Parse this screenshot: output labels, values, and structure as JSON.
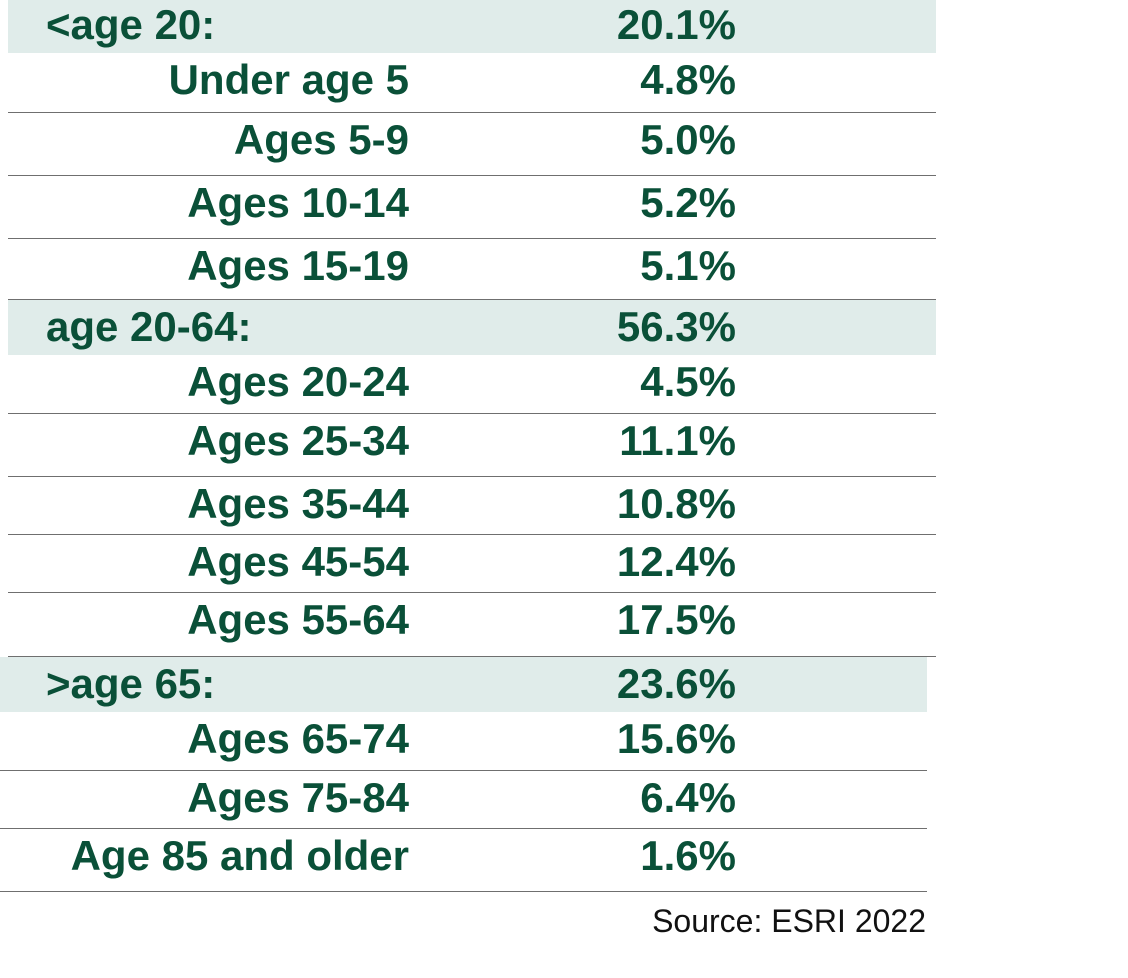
{
  "chart_data": {
    "type": "table",
    "rows": [
      {
        "kind": "group",
        "label": "<age 20:",
        "value": "20.1%"
      },
      {
        "kind": "item",
        "label": "Under age 5",
        "value": "4.8%"
      },
      {
        "kind": "item",
        "label": "Ages 5-9",
        "value": "5.0%"
      },
      {
        "kind": "item",
        "label": "Ages 10-14",
        "value": "5.2%"
      },
      {
        "kind": "item",
        "label": "Ages 15-19",
        "value": "5.1%"
      },
      {
        "kind": "group",
        "label": "age 20-64:",
        "value": "56.3%"
      },
      {
        "kind": "item",
        "label": "Ages 20-24",
        "value": "4.5%"
      },
      {
        "kind": "item",
        "label": "Ages 25-34",
        "value": "11.1%"
      },
      {
        "kind": "item",
        "label": "Ages 35-44",
        "value": "10.8%"
      },
      {
        "kind": "item",
        "label": "Ages 45-54",
        "value": "12.4%"
      },
      {
        "kind": "item",
        "label": "Ages 55-64",
        "value": "17.5%"
      },
      {
        "kind": "group",
        "label": ">age 65:",
        "value": "23.6%"
      },
      {
        "kind": "item",
        "label": "Ages 65-74",
        "value": "15.6%"
      },
      {
        "kind": "item",
        "label": "Ages 75-84",
        "value": "6.4%"
      },
      {
        "kind": "item",
        "label": "Age 85 and older",
        "value": "1.6%"
      }
    ],
    "source": "Source: ESRI 2022"
  },
  "colors": {
    "text": "#0a5038",
    "group_background": "#e0ecea",
    "divider": "#6f6f6f",
    "source_text": "#111111"
  }
}
